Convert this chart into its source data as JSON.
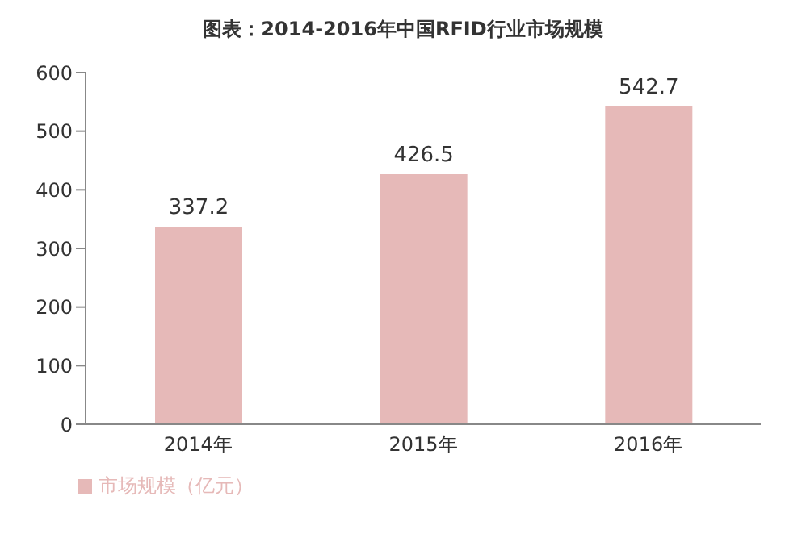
{
  "chart_data": {
    "type": "bar",
    "title": "图表：2014-2016年中国RFID行业市场规模",
    "categories": [
      "2014年",
      "2015年",
      "2016年"
    ],
    "series": [
      {
        "name": "市场规模（亿元）",
        "color": "#e6b9b8",
        "values": [
          337.2,
          426.5,
          542.7
        ]
      }
    ],
    "ylim": [
      0,
      600
    ],
    "yticks": [
      0,
      100,
      200,
      300,
      400,
      500,
      600
    ],
    "grid": false,
    "legend": "bottom left",
    "data_labels": true
  }
}
